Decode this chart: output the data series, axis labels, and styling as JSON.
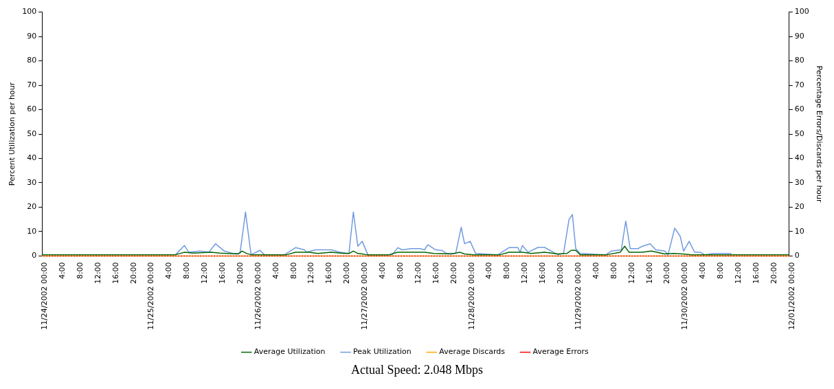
{
  "chart_data": {
    "type": "line",
    "xlim": [
      "2002-11-24T00:00",
      "2002-12-01T00:00"
    ],
    "xticks": [
      {
        "value": "2002-11-24T00:00",
        "label": "11/24/2002 00:00"
      },
      {
        "value": "2002-11-24T04:00",
        "label": "4:00"
      },
      {
        "value": "2002-11-24T08:00",
        "label": "8:00"
      },
      {
        "value": "2002-11-24T12:00",
        "label": "12:00"
      },
      {
        "value": "2002-11-24T16:00",
        "label": "16:00"
      },
      {
        "value": "2002-11-24T20:00",
        "label": "20:00"
      },
      {
        "value": "2002-11-25T00:00",
        "label": "11/25/2002 00:00"
      },
      {
        "value": "2002-11-25T04:00",
        "label": "4:00"
      },
      {
        "value": "2002-11-25T08:00",
        "label": "8:00"
      },
      {
        "value": "2002-11-25T12:00",
        "label": "12:00"
      },
      {
        "value": "2002-11-25T16:00",
        "label": "16:00"
      },
      {
        "value": "2002-11-25T20:00",
        "label": "20:00"
      },
      {
        "value": "2002-11-26T00:00",
        "label": "11/26/2002 00:00"
      },
      {
        "value": "2002-11-26T04:00",
        "label": "4:00"
      },
      {
        "value": "2002-11-26T08:00",
        "label": "8:00"
      },
      {
        "value": "2002-11-26T12:00",
        "label": "12:00"
      },
      {
        "value": "2002-11-26T16:00",
        "label": "16:00"
      },
      {
        "value": "2002-11-26T20:00",
        "label": "20:00"
      },
      {
        "value": "2002-11-27T00:00",
        "label": "11/27/2002 00:00"
      },
      {
        "value": "2002-11-27T04:00",
        "label": "4:00"
      },
      {
        "value": "2002-11-27T08:00",
        "label": "8:00"
      },
      {
        "value": "2002-11-27T12:00",
        "label": "12:00"
      },
      {
        "value": "2002-11-27T16:00",
        "label": "16:00"
      },
      {
        "value": "2002-11-27T20:00",
        "label": "20:00"
      },
      {
        "value": "2002-11-28T00:00",
        "label": "11/28/2002 00:00"
      },
      {
        "value": "2002-11-28T04:00",
        "label": "4:00"
      },
      {
        "value": "2002-11-28T08:00",
        "label": "8:00"
      },
      {
        "value": "2002-11-28T12:00",
        "label": "12:00"
      },
      {
        "value": "2002-11-28T16:00",
        "label": "16:00"
      },
      {
        "value": "2002-11-28T20:00",
        "label": "20:00"
      },
      {
        "value": "2002-11-29T00:00",
        "label": "11/29/2002 00:00"
      },
      {
        "value": "2002-11-29T04:00",
        "label": "4:00"
      },
      {
        "value": "2002-11-29T08:00",
        "label": "8:00"
      },
      {
        "value": "2002-11-29T12:00",
        "label": "12:00"
      },
      {
        "value": "2002-11-29T16:00",
        "label": "16:00"
      },
      {
        "value": "2002-11-29T20:00",
        "label": "20:00"
      },
      {
        "value": "2002-11-30T00:00",
        "label": "11/30/2002 00:00"
      },
      {
        "value": "2002-11-30T04:00",
        "label": "4:00"
      },
      {
        "value": "2002-11-30T08:00",
        "label": "8:00"
      },
      {
        "value": "2002-11-30T12:00",
        "label": "12:00"
      },
      {
        "value": "2002-11-30T16:00",
        "label": "16:00"
      },
      {
        "value": "2002-11-30T20:00",
        "label": "20:00"
      },
      {
        "value": "2002-12-01T00:00",
        "label": "12/01/2002 00:00"
      }
    ],
    "ylabel": "Percent Utilization per hour",
    "y2label": "Percentage Errors/Discards per hour",
    "ylim": [
      0,
      100
    ],
    "yticks": [
      0,
      10,
      20,
      30,
      40,
      50,
      60,
      70,
      80,
      90,
      100
    ],
    "y2lim": [
      0,
      100
    ],
    "y2ticks": [
      0,
      10,
      20,
      30,
      40,
      50,
      60,
      70,
      80,
      90,
      100
    ],
    "grid": false,
    "legend": "bottom",
    "marker": "none",
    "series": [
      {
        "name": "Average Utilization",
        "color": "#006400",
        "line_style": "solid",
        "x": [
          "2002-11-24T00:00",
          "2002-11-25T06:00",
          "2002-11-25T07:00",
          "2002-11-25T08:00",
          "2002-11-25T10:00",
          "2002-11-25T14:00",
          "2002-11-25T16:00",
          "2002-11-25T20:00",
          "2002-11-25T21:00",
          "2002-11-25T22:00",
          "2002-11-25T23:00",
          "2002-11-26T01:00",
          "2002-11-26T07:00",
          "2002-11-26T09:00",
          "2002-11-26T12:00",
          "2002-11-26T14:00",
          "2002-11-26T17:00",
          "2002-11-26T20:00",
          "2002-11-26T21:00",
          "2002-11-26T22:00",
          "2002-11-26T23:00",
          "2002-11-27T00:00",
          "2002-11-27T01:00",
          "2002-11-27T06:00",
          "2002-11-27T08:00",
          "2002-11-27T14:00",
          "2002-11-27T16:00",
          "2002-11-27T20:00",
          "2002-11-27T22:00",
          "2002-11-27T23:00",
          "2002-11-28T01:00",
          "2002-11-28T07:00",
          "2002-11-28T09:00",
          "2002-11-28T12:00",
          "2002-11-28T14:00",
          "2002-11-28T17:00",
          "2002-11-28T20:00",
          "2002-11-28T22:00",
          "2002-11-28T23:00",
          "2002-11-29T00:00",
          "2002-11-29T01:00",
          "2002-11-29T07:00",
          "2002-11-29T10:00",
          "2002-11-29T11:00",
          "2002-11-29T12:00",
          "2002-11-29T15:00",
          "2002-11-29T17:00",
          "2002-11-29T20:00",
          "2002-11-29T22:00",
          "2002-11-30T00:00",
          "2002-11-30T02:00",
          "2002-12-01T00:00"
        ],
        "values": [
          0.5,
          0.5,
          1,
          1.5,
          1.2,
          1.5,
          1.2,
          0.8,
          2,
          1,
          0.5,
          0.5,
          0.5,
          1.5,
          1.5,
          1,
          1.5,
          1,
          1,
          2,
          1,
          0.8,
          0.5,
          0.5,
          1.5,
          1.5,
          1,
          0.8,
          1.5,
          0.8,
          0.5,
          0.5,
          1.5,
          1.5,
          1,
          1.5,
          0.8,
          1,
          2.3,
          2.3,
          0.5,
          0.5,
          1.5,
          4,
          1.5,
          1.5,
          2,
          0.8,
          1,
          0.8,
          0.5,
          0.5
        ]
      },
      {
        "name": "Peak Utilization",
        "color": "#6f9ae0",
        "line_style": "solid",
        "x": [
          "2002-11-25T06:00",
          "2002-11-25T08:00",
          "2002-11-25T09:00",
          "2002-11-25T11:30",
          "2002-11-25T13:30",
          "2002-11-25T15:00",
          "2002-11-25T17:00",
          "2002-11-25T19:00",
          "2002-11-25T20:30",
          "2002-11-25T21:45",
          "2002-11-25T23:00",
          "2002-11-26T01:00",
          "2002-11-26T02:00",
          "2002-11-26T06:30",
          "2002-11-26T09:00",
          "2002-11-26T11:00",
          "2002-11-26T11:30",
          "2002-11-26T13:30",
          "2002-11-26T17:00",
          "2002-11-26T19:00",
          "2002-11-26T21:00",
          "2002-11-26T22:00",
          "2002-11-26T23:00",
          "2002-11-27T00:00",
          "2002-11-27T01:15",
          "2002-11-27T06:45",
          "2002-11-27T08:00",
          "2002-11-27T09:00",
          "2002-11-27T11:00",
          "2002-11-27T13:00",
          "2002-11-27T14:00",
          "2002-11-27T14:45",
          "2002-11-27T16:30",
          "2002-11-27T18:00",
          "2002-11-27T19:00",
          "2002-11-27T21:00",
          "2002-11-27T22:15",
          "2002-11-27T23:00",
          "2002-11-28T00:15",
          "2002-11-28T01:30",
          "2002-11-28T03:00",
          "2002-11-28T06:30",
          "2002-11-28T09:00",
          "2002-11-28T11:00",
          "2002-11-28T11:30",
          "2002-11-28T12:00",
          "2002-11-28T13:15",
          "2002-11-28T15:30",
          "2002-11-28T17:00",
          "2002-11-28T19:00",
          "2002-11-28T20:00",
          "2002-11-28T21:15",
          "2002-11-28T22:30",
          "2002-11-28T23:15",
          "2002-11-29T00:00",
          "2002-11-29T01:00",
          "2002-11-29T02:00",
          "2002-11-29T06:45",
          "2002-11-29T08:00",
          "2002-11-29T10:15",
          "2002-11-29T11:15",
          "2002-11-29T12:15",
          "2002-11-29T14:00",
          "2002-11-29T15:00",
          "2002-11-29T16:45",
          "2002-11-29T18:00",
          "2002-11-29T20:00",
          "2002-11-29T20:45",
          "2002-11-29T22:15",
          "2002-11-29T23:30",
          "2002-11-30T00:15",
          "2002-11-30T01:30",
          "2002-11-30T02:45",
          "2002-11-30T04:00",
          "2002-11-30T05:00",
          "2002-11-30T07:00",
          "2002-11-30T11:00"
        ],
        "values": [
          0.5,
          4.3,
          1.5,
          2,
          1.5,
          5,
          2,
          1,
          1,
          18,
          0.5,
          2.3,
          0.5,
          0.5,
          3.4,
          2.5,
          1.5,
          2.5,
          2.5,
          1.5,
          1,
          18,
          4,
          6,
          0.5,
          0.5,
          3.4,
          2.5,
          3,
          3,
          2.5,
          4.6,
          2.5,
          2.2,
          1,
          1,
          11.8,
          5,
          6,
          1,
          null,
          0.5,
          3.4,
          3.4,
          1.5,
          4.3,
          1.5,
          3.5,
          3.5,
          1.5,
          0.5,
          1,
          15,
          17,
          3,
          1,
          null,
          0.5,
          2,
          2.5,
          14.3,
          3,
          3,
          4,
          5,
          2.5,
          2,
          0.5,
          11.4,
          8,
          2,
          6,
          1.5,
          1.5,
          0.5,
          1,
          1
        ]
      },
      {
        "name": "Average Discards",
        "color": "#ffa500",
        "line_style": "dotted",
        "axis": "y2",
        "x": [
          "2002-11-24T00:00",
          "2002-12-01T00:00"
        ],
        "values": [
          0,
          0
        ]
      },
      {
        "name": "Average Errors",
        "color": "#ff0000",
        "line_style": "dotted",
        "axis": "y2",
        "x": [
          "2002-11-24T00:00",
          "2002-12-01T00:00"
        ],
        "values": [
          0,
          0
        ]
      }
    ],
    "annotations": [
      "Actual Speed: 2.048 Mbps"
    ]
  }
}
